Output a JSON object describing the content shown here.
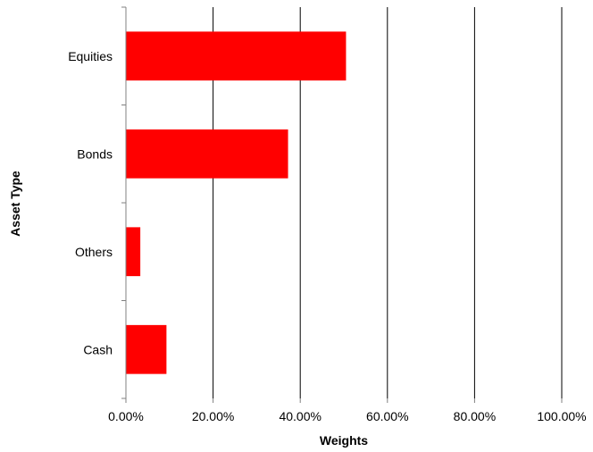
{
  "chart_data": {
    "type": "bar",
    "orientation": "horizontal",
    "categories": [
      "Equities",
      "Bonds",
      "Others",
      "Cash"
    ],
    "values": [
      0.505,
      0.372,
      0.033,
      0.093
    ],
    "xlabel": "Weights",
    "ylabel": "Asset Type",
    "xlim": [
      0,
      1
    ],
    "xticks": [
      "0.00%",
      "20.00%",
      "40.00%",
      "60.00%",
      "80.00%",
      "100.00%"
    ],
    "grid": "vertical",
    "legend": "none",
    "bar_color": "#FF0000"
  }
}
